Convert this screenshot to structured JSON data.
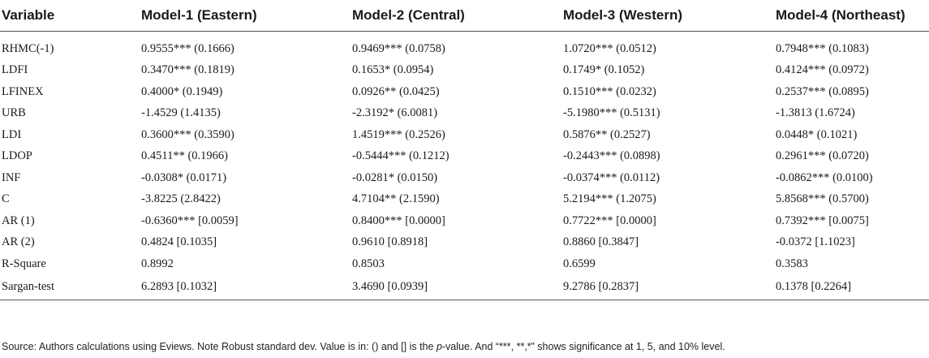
{
  "table": {
    "headers": [
      "Variable",
      "Model-1 (Eastern)",
      "Model-2 (Central)",
      "Model-3 (Western)",
      "Model-4 (Northeast)"
    ],
    "rows": [
      [
        "RHMC(-1)",
        "0.9555*** (0.1666)",
        "0.9469*** (0.0758)",
        "1.0720*** (0.0512)",
        "0.7948*** (0.1083)"
      ],
      [
        "LDFI",
        "0.3470*** (0.1819)",
        "0.1653* (0.0954)",
        "0.1749* (0.1052)",
        "0.4124*** (0.0972)"
      ],
      [
        "LFINEX",
        "0.4000* (0.1949)",
        "0.0926** (0.0425)",
        "0.1510*** (0.0232)",
        "0.2537*** (0.0895)"
      ],
      [
        "URB",
        "-1.4529 (1.4135)",
        "-2.3192* (6.0081)",
        "-5.1980*** (0.5131)",
        "-1.3813 (1.6724)"
      ],
      [
        "LDI",
        "0.3600*** (0.3590)",
        "1.4519*** (0.2526)",
        "0.5876** (0.2527)",
        "0.0448* (0.1021)"
      ],
      [
        "LDOP",
        "0.4511** (0.1966)",
        "-0.5444*** (0.1212)",
        "-0.2443*** (0.0898)",
        "0.2961*** (0.0720)"
      ],
      [
        "INF",
        "-0.0308* (0.0171)",
        "-0.0281* (0.0150)",
        "-0.0374*** (0.0112)",
        "-0.0862*** (0.0100)"
      ],
      [
        "C",
        "-3.8225 (2.8422)",
        "4.7104** (2.1590)",
        "5.2194*** (1.2075)",
        "5.8568*** (0.5700)"
      ],
      [
        "AR (1)",
        "-0.6360*** [0.0059]",
        "0.8400*** [0.0000]",
        "0.7722*** [0.0000]",
        "0.7392*** [0.0075]"
      ],
      [
        "AR (2)",
        "0.4824 [0.1035]",
        "0.9610 [0.8918]",
        "0.8860 [0.3847]",
        "-0.0372 [1.1023]"
      ],
      [
        "R-Square",
        "0.8992",
        "0.8503",
        "0.6599",
        "0.3583"
      ],
      [
        "Sargan-test",
        "6.2893 [0.1032]",
        "3.4690 [0.0939]",
        "9.2786 [0.2837]",
        "0.1378 [0.2264]"
      ]
    ]
  },
  "note": {
    "before": "Source: Authors calculations using Eviews. Note Robust standard dev. Value is in: () and [] is the ",
    "italic": "p",
    "after": "-value. And “***, **,*” shows significance at 1, 5, and 10% level."
  }
}
